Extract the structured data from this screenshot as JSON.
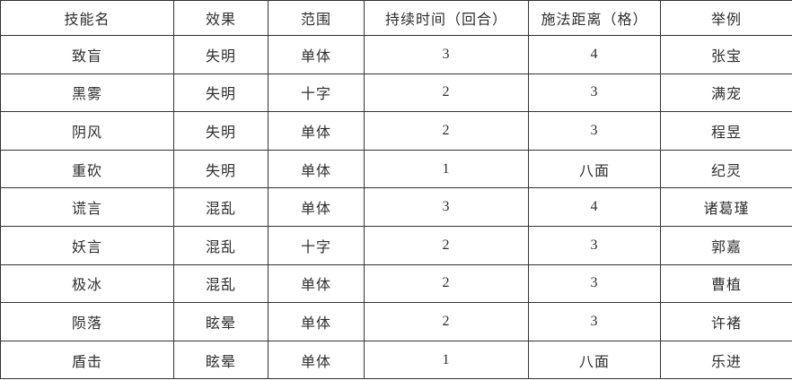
{
  "table": {
    "headers": [
      "技能名",
      "效果",
      "范围",
      "持续时间（回合）",
      "施法距离（格）",
      "举例"
    ],
    "rows": [
      [
        "致盲",
        "失明",
        "单体",
        "3",
        "4",
        "张宝"
      ],
      [
        "黑雾",
        "失明",
        "十字",
        "2",
        "3",
        "满宠"
      ],
      [
        "阴风",
        "失明",
        "单体",
        "2",
        "3",
        "程昱"
      ],
      [
        "重砍",
        "失明",
        "单体",
        "1",
        "八面",
        "纪灵"
      ],
      [
        "谎言",
        "混乱",
        "单体",
        "3",
        "4",
        "诸葛瑾"
      ],
      [
        "妖言",
        "混乱",
        "十字",
        "2",
        "3",
        "郭嘉"
      ],
      [
        "极冰",
        "混乱",
        "单体",
        "2",
        "3",
        "曹植"
      ],
      [
        "陨落",
        "眩晕",
        "单体",
        "2",
        "3",
        "许褚"
      ],
      [
        "盾击",
        "眩晕",
        "单体",
        "1",
        "八面",
        "乐进"
      ]
    ],
    "colors": {
      "border": "#333333",
      "text": "#2e2e2e",
      "background": "#ffffff"
    }
  }
}
